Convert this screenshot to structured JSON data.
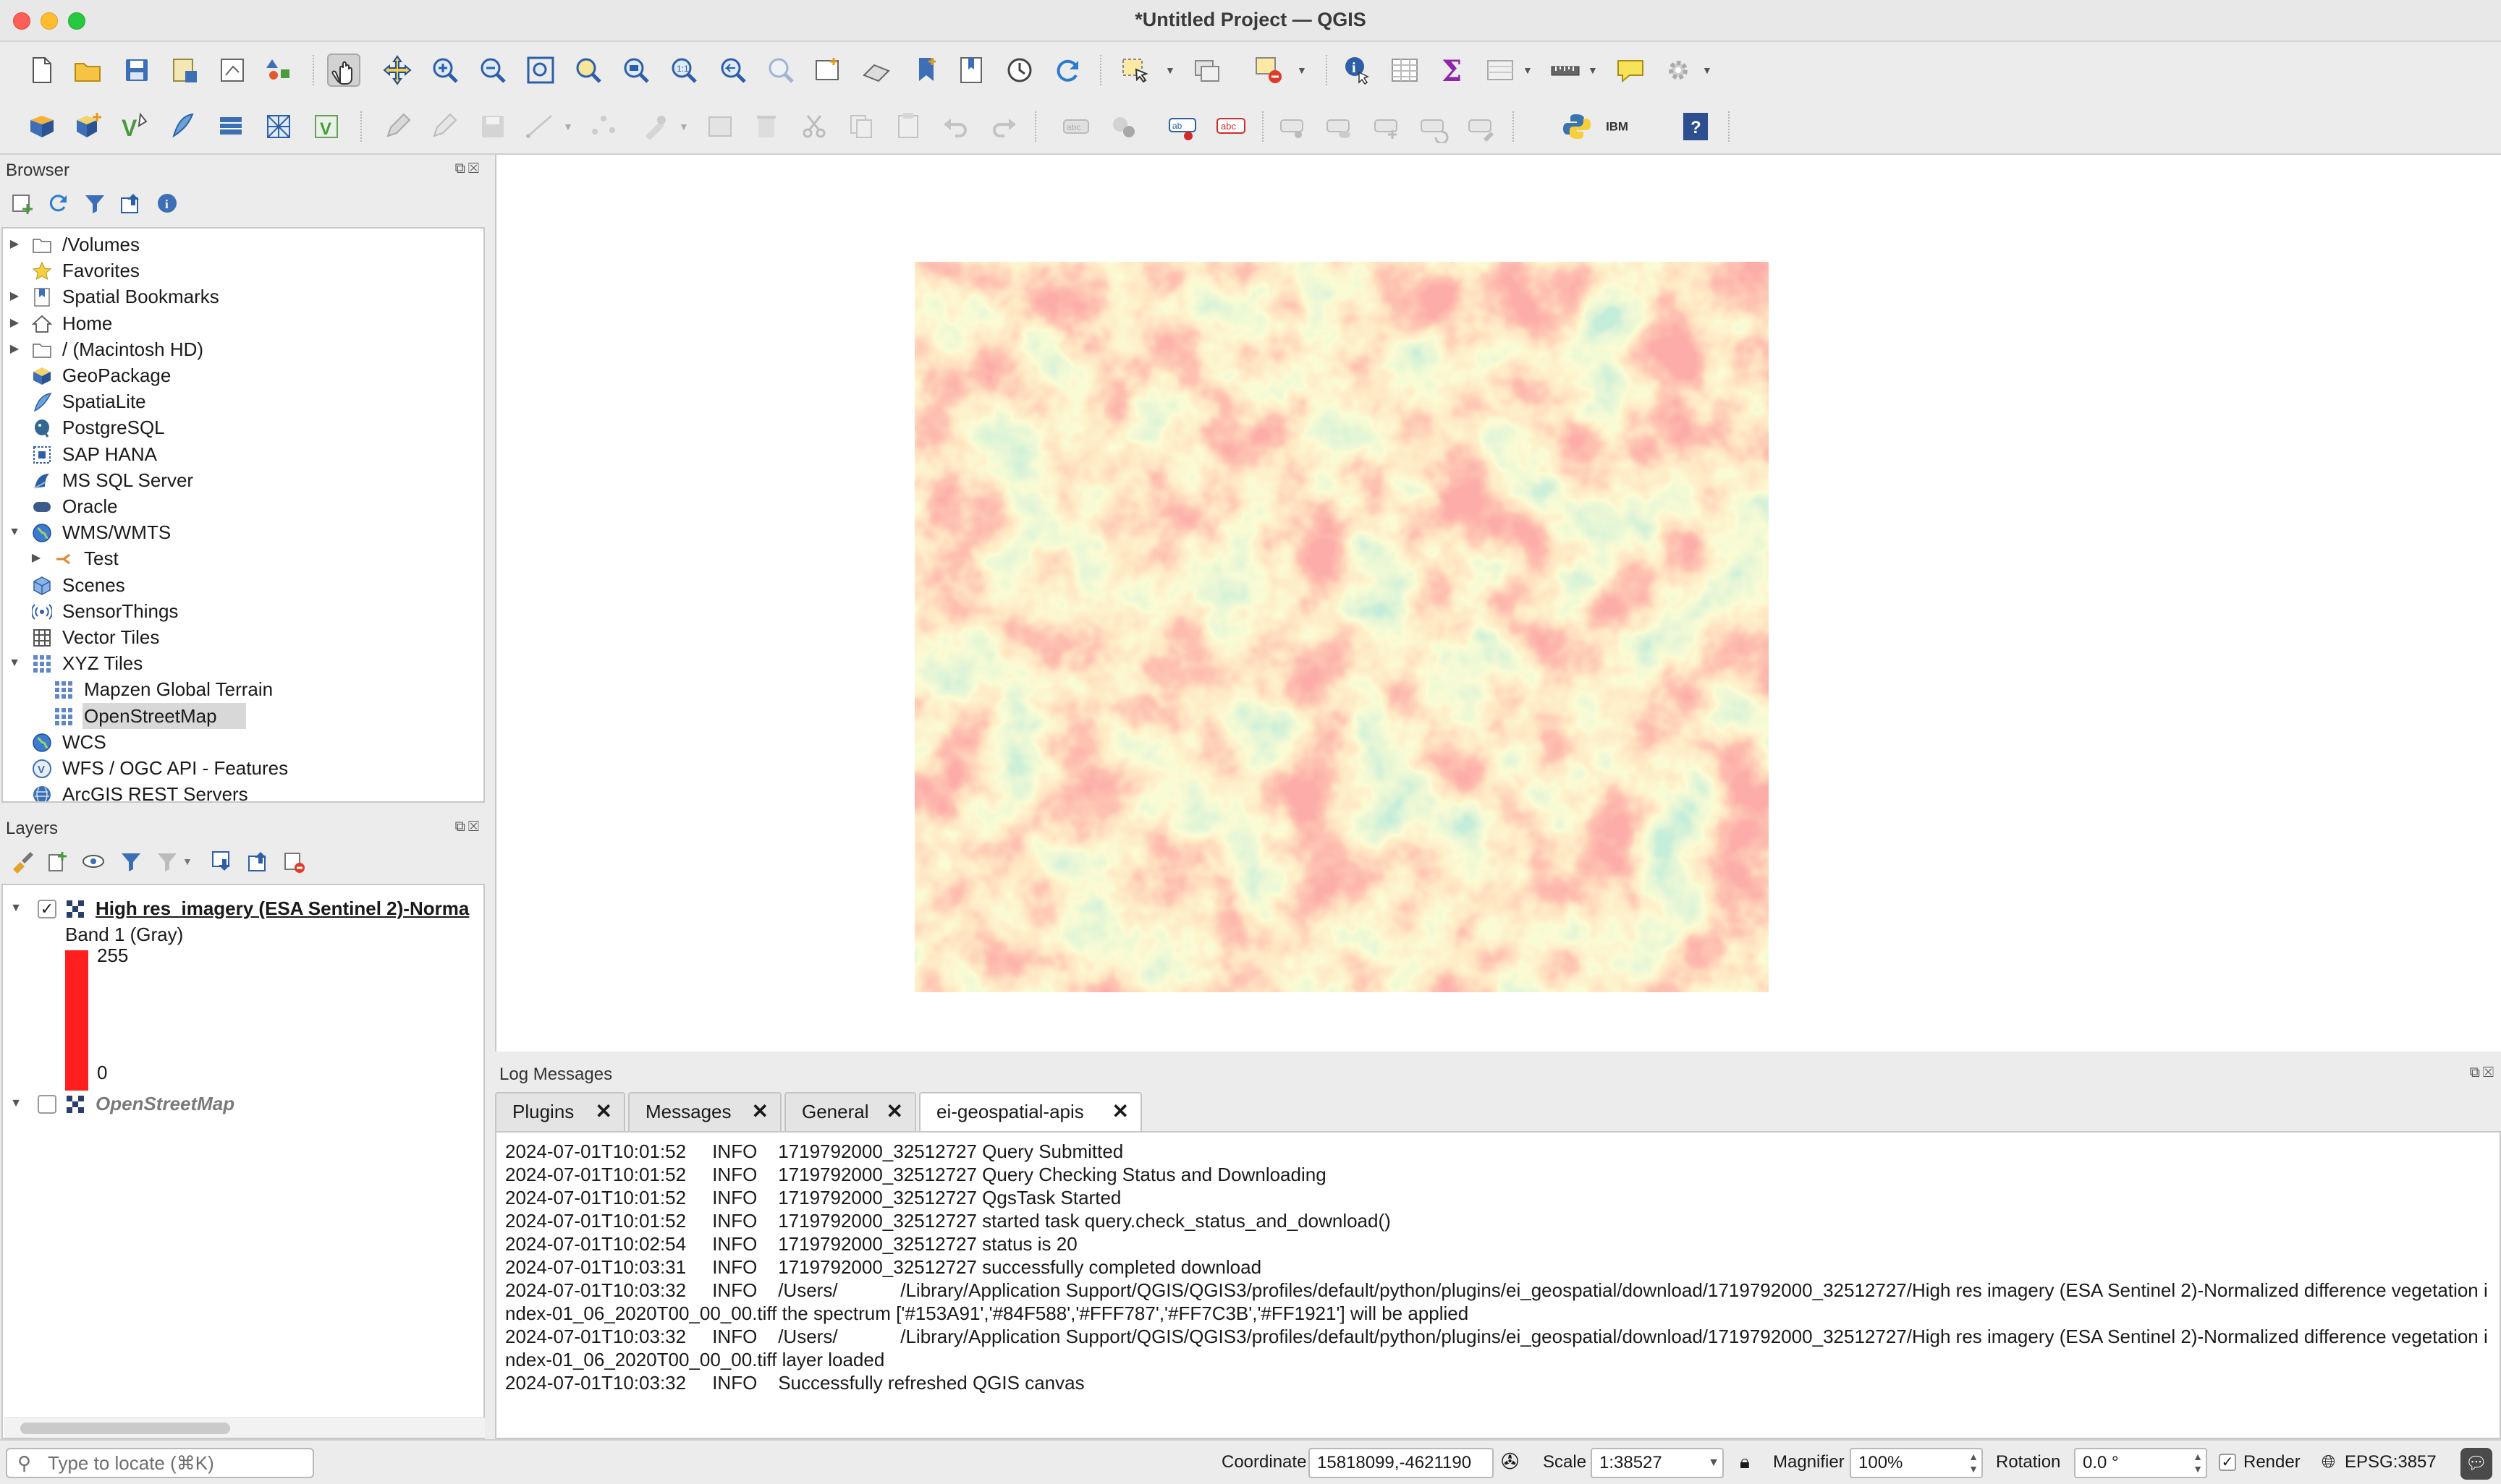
{
  "window": {
    "title": "*Untitled Project — QGIS"
  },
  "browser": {
    "title": "Browser",
    "items": [
      {
        "label": "/Volumes",
        "icon": "folder-icon",
        "arrow": "▶",
        "indent": 0
      },
      {
        "label": "Favorites",
        "icon": "star-icon",
        "arrow": "",
        "indent": 0
      },
      {
        "label": "Spatial Bookmarks",
        "icon": "bookmark-icon",
        "arrow": "▶",
        "indent": 0
      },
      {
        "label": "Home",
        "icon": "home-icon",
        "arrow": "▶",
        "indent": 0
      },
      {
        "label": "/ (Macintosh HD)",
        "icon": "folder-icon",
        "arrow": "▶",
        "indent": 0
      },
      {
        "label": "GeoPackage",
        "icon": "geopackage-icon",
        "arrow": "",
        "indent": 0
      },
      {
        "label": "SpatiaLite",
        "icon": "spatialite-icon",
        "arrow": "",
        "indent": 0
      },
      {
        "label": "PostgreSQL",
        "icon": "postgresql-icon",
        "arrow": "",
        "indent": 0
      },
      {
        "label": "SAP HANA",
        "icon": "sap-hana-icon",
        "arrow": "",
        "indent": 0
      },
      {
        "label": "MS SQL Server",
        "icon": "mssql-icon",
        "arrow": "",
        "indent": 0
      },
      {
        "label": "Oracle",
        "icon": "oracle-icon",
        "arrow": "",
        "indent": 0
      },
      {
        "label": "WMS/WMTS",
        "icon": "globe-icon",
        "arrow": "▼",
        "indent": 0
      },
      {
        "label": "Test",
        "icon": "connection-icon",
        "arrow": "▶",
        "indent": 1
      },
      {
        "label": "Scenes",
        "icon": "scenes-icon",
        "arrow": "",
        "indent": 0
      },
      {
        "label": "SensorThings",
        "icon": "sensor-icon",
        "arrow": "",
        "indent": 0
      },
      {
        "label": "Vector Tiles",
        "icon": "grid-icon",
        "arrow": "",
        "indent": 0
      },
      {
        "label": "XYZ Tiles",
        "icon": "xyz-grid-icon",
        "arrow": "▼",
        "indent": 0
      },
      {
        "label": "Mapzen Global Terrain",
        "icon": "xyz-grid-icon",
        "arrow": "",
        "indent": 1
      },
      {
        "label": "OpenStreetMap",
        "icon": "xyz-grid-icon",
        "arrow": "",
        "indent": 1,
        "selected": true
      },
      {
        "label": "WCS",
        "icon": "globe-icon",
        "arrow": "",
        "indent": 0
      },
      {
        "label": "WFS / OGC API - Features",
        "icon": "wfs-icon",
        "arrow": "",
        "indent": 0
      },
      {
        "label": "ArcGIS REST Servers",
        "icon": "arcgis-icon",
        "arrow": "",
        "indent": 0
      }
    ]
  },
  "layers": {
    "title": "Layers",
    "layer1": {
      "name": "High res_imagery (ESA Sentinel 2)-Norma",
      "band": "Band 1 (Gray)",
      "max": "255",
      "min": "0",
      "checked": "✓"
    },
    "layer2": {
      "name": "OpenStreetMap"
    }
  },
  "log": {
    "title": "Log Messages",
    "tabs": [
      "Plugins",
      "Messages",
      "General",
      "ei-geospatial-apis"
    ],
    "lines": [
      "2024-07-01T10:01:52     INFO    1719792000_32512727 Query Submitted",
      "2024-07-01T10:01:52     INFO    1719792000_32512727 Query Checking Status and Downloading",
      "2024-07-01T10:01:52     INFO    1719792000_32512727 QgsTask Started",
      "2024-07-01T10:01:52     INFO    1719792000_32512727 started task query.check_status_and_download()",
      "2024-07-01T10:02:54     INFO    1719792000_32512727 status is 20",
      "2024-07-01T10:03:31     INFO    1719792000_32512727 successfully completed download",
      "2024-07-01T10:03:32     INFO    /Users/            /Library/Application Support/QGIS/QGIS3/profiles/default/python/plugins/ei_geospatial/download/1719792000_32512727/High res imagery (ESA Sentinel 2)-Normalized difference vegetation index-01_06_2020T00_00_00.tiff the spectrum ['#153A91','#84F588','#FFF787','#FF7C3B','#FF1921'] will be applied",
      "2024-07-01T10:03:32     INFO    /Users/            /Library/Application Support/QGIS/QGIS3/profiles/default/python/plugins/ei_geospatial/download/1719792000_32512727/High res imagery (ESA Sentinel 2)-Normalized difference vegetation index-01_06_2020T00_00_00.tiff layer loaded",
      "2024-07-01T10:03:32     INFO    Successfully refreshed QGIS canvas"
    ]
  },
  "status": {
    "locator_placeholder": "Type to locate (⌘K)",
    "coordinate_label": "Coordinate",
    "coordinate_value": "15818099,-4621190",
    "scale_label": "Scale",
    "scale_value": "1:38527",
    "magnifier_label": "Magnifier",
    "magnifier_value": "100%",
    "rotation_label": "Rotation",
    "rotation_value": "0.0 °",
    "render_label": "Render",
    "crs": "EPSG:3857"
  },
  "colors": {
    "ndvi_spectrum": [
      "#153A91",
      "#84F588",
      "#FFF787",
      "#FF7C3B",
      "#FF1921"
    ],
    "legend_bar": "#ff1f1f"
  }
}
